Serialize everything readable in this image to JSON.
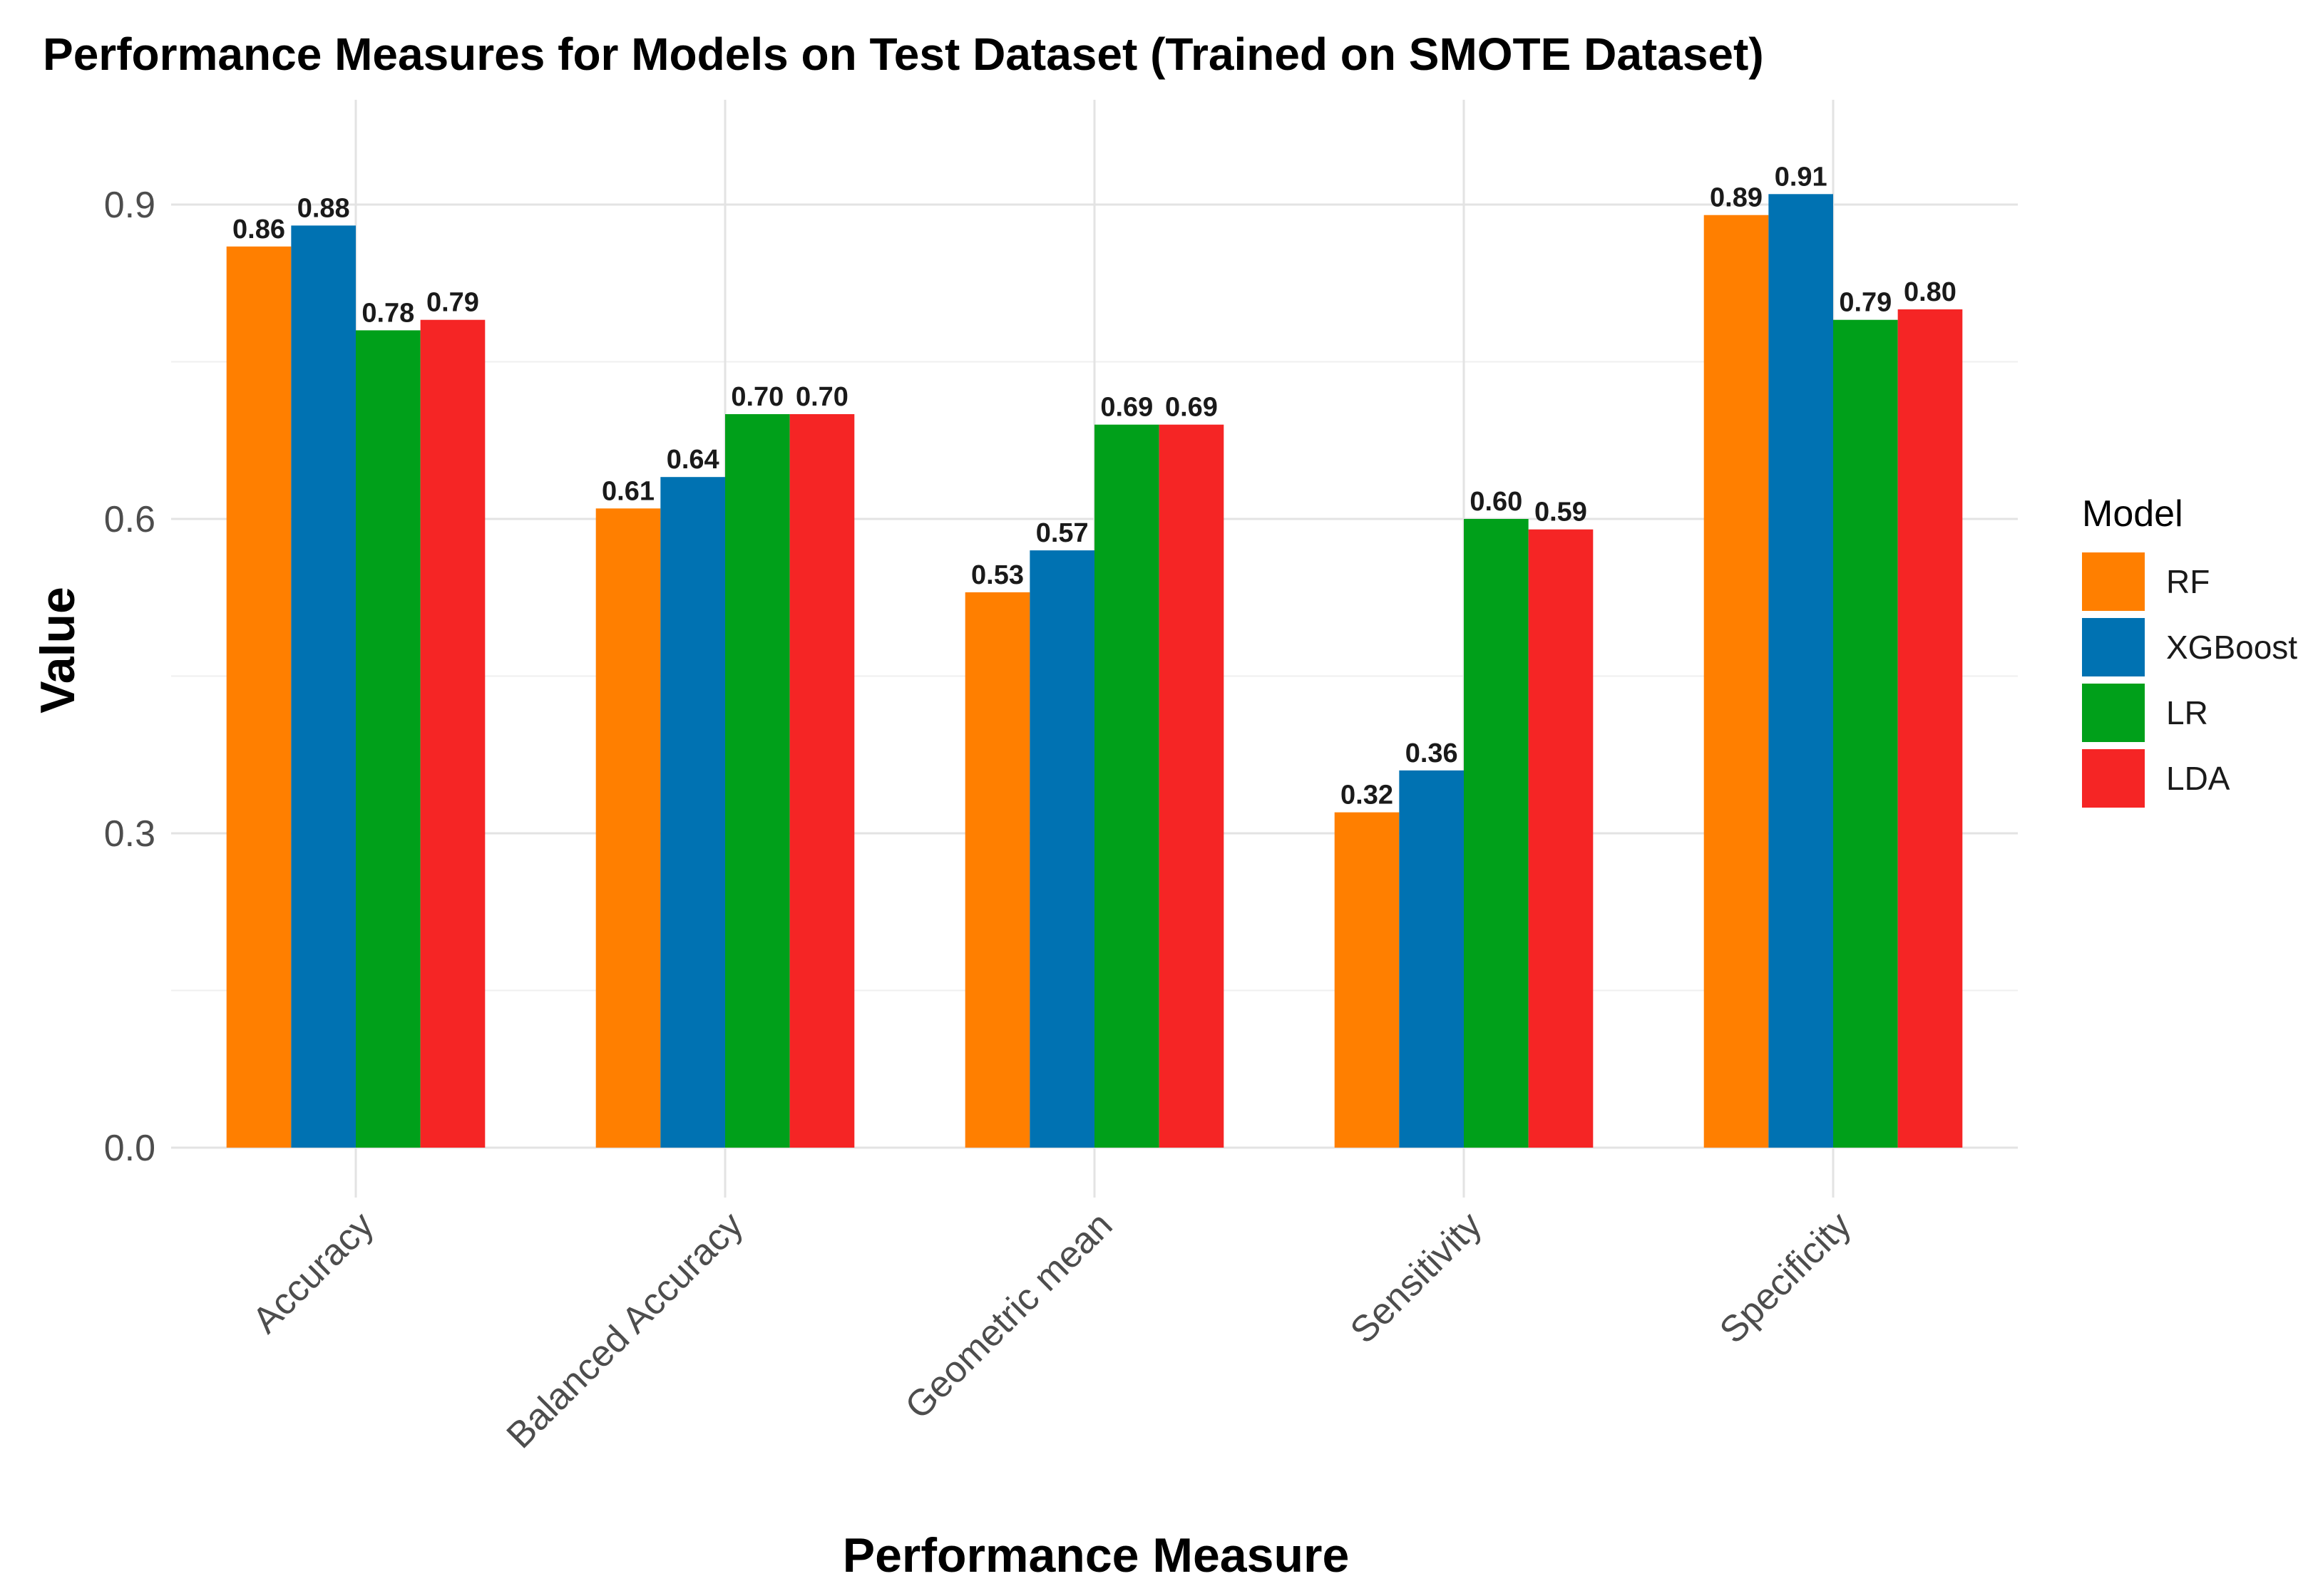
{
  "chart_data": {
    "type": "bar",
    "title": "Performance Measures for Models on Test Dataset (Trained on SMOTE Dataset)",
    "xlabel": "Performance Measure",
    "ylabel": "Value",
    "ylim": [
      0,
      1.0
    ],
    "y_ticks": [
      {
        "value": 0.0,
        "label": "0.0"
      },
      {
        "value": 0.3,
        "label": "0.3"
      },
      {
        "value": 0.6,
        "label": "0.6"
      },
      {
        "value": 0.9,
        "label": "0.9"
      }
    ],
    "grid": true,
    "legend_title": "Model",
    "legend_position": "right",
    "categories": [
      "Accuracy",
      "Balanced Accuracy",
      "Geometric mean",
      "Sensitivity",
      "Specificity"
    ],
    "series": [
      {
        "name": "RF",
        "color": "#FF7F00",
        "values": [
          0.86,
          0.61,
          0.53,
          0.32,
          0.89
        ],
        "labels": [
          "0.86",
          "0.61",
          "0.53",
          "0.32",
          "0.89"
        ]
      },
      {
        "name": "XGBoost",
        "color": "#0072B2",
        "values": [
          0.88,
          0.64,
          0.57,
          0.36,
          0.91
        ],
        "labels": [
          "0.88",
          "0.64",
          "0.57",
          "0.36",
          "0.91"
        ]
      },
      {
        "name": "LR",
        "color": "#00A01A",
        "values": [
          0.78,
          0.7,
          0.69,
          0.6,
          0.79
        ],
        "labels": [
          "0.78",
          "0.70",
          "0.69",
          "0.60",
          "0.79"
        ]
      },
      {
        "name": "LDA",
        "color": "#F52525",
        "values": [
          0.79,
          0.7,
          0.69,
          0.59,
          0.8
        ],
        "labels": [
          "0.79",
          "0.70",
          "0.69",
          "0.59",
          "0.80"
        ]
      }
    ]
  }
}
